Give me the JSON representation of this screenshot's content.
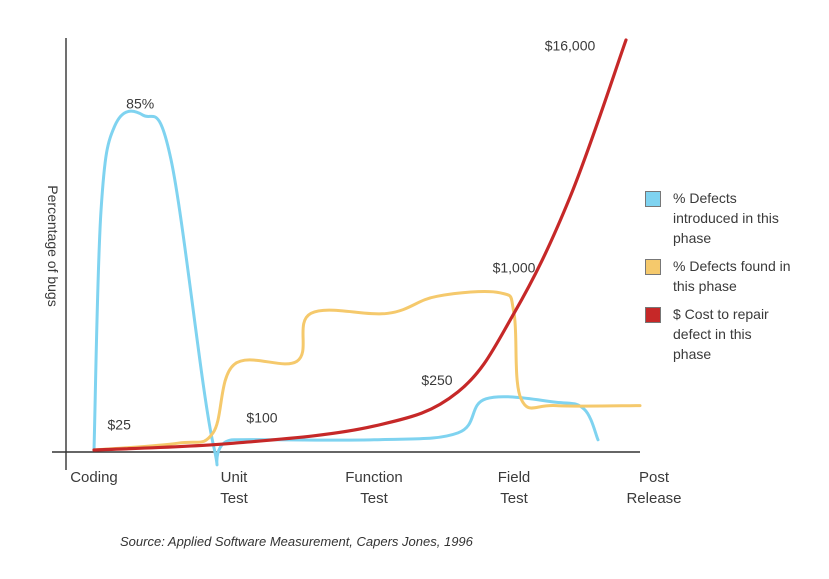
{
  "chart_data": {
    "type": "line",
    "ylabel": "Percentage of bugs",
    "categories": [
      "Coding",
      "Unit\nTest",
      "Function\nTest",
      "Field\nTest",
      "Post\nRelease"
    ],
    "series": [
      {
        "name": "% Defects introduced in this phase",
        "color": "#7fd3f0",
        "values": [
          [
            0.0,
            0
          ],
          [
            0.05,
            70
          ],
          [
            0.15,
            95
          ],
          [
            0.35,
            98
          ],
          [
            0.55,
            85
          ],
          [
            0.85,
            2
          ],
          [
            1.0,
            3
          ],
          [
            2.0,
            3
          ],
          [
            2.6,
            5
          ],
          [
            2.8,
            15
          ],
          [
            3.3,
            14
          ],
          [
            3.5,
            12
          ],
          [
            3.6,
            3
          ]
        ]
      },
      {
        "name": "% Defects found in this phase",
        "color": "#f5c96c",
        "values": [
          [
            0.0,
            0
          ],
          [
            0.6,
            2
          ],
          [
            0.85,
            5
          ],
          [
            1.0,
            25
          ],
          [
            1.45,
            26
          ],
          [
            1.55,
            40
          ],
          [
            2.1,
            40
          ],
          [
            2.45,
            45
          ],
          [
            2.9,
            46
          ],
          [
            3.0,
            40
          ],
          [
            3.05,
            15
          ],
          [
            3.3,
            13
          ],
          [
            3.9,
            13
          ]
        ]
      },
      {
        "name": "$ Cost to repair defect in this phase",
        "color": "#c62828",
        "values": [
          [
            0.0,
            0
          ],
          [
            1.0,
            2
          ],
          [
            2.0,
            7
          ],
          [
            2.6,
            17
          ],
          [
            3.0,
            40
          ],
          [
            3.4,
            74
          ],
          [
            3.8,
            120
          ]
        ]
      }
    ],
    "annotations": [
      {
        "text": "85%",
        "x": 0.33,
        "y": 100
      },
      {
        "text": "$25",
        "x": 0.18,
        "y": 6
      },
      {
        "text": "$100",
        "x": 1.2,
        "y": 8
      },
      {
        "text": "$250",
        "x": 2.45,
        "y": 19
      },
      {
        "text": "$1,000",
        "x": 3.0,
        "y": 52
      },
      {
        "text": "$16,000",
        "x": 3.4,
        "y": 117
      }
    ],
    "xlim": [
      -0.2,
      3.9
    ],
    "ylim": [
      0,
      120
    ]
  },
  "legend": [
    {
      "text": "% Defects introduced in this phase",
      "color": "#7fd3f0"
    },
    {
      "text": "% Defects found in this phase",
      "color": "#f5c96c"
    },
    {
      "text": "$ Cost to repair defect in this phase",
      "color": "#c62828"
    }
  ],
  "source": "Source: Applied Software Measurement, Capers Jones, 1996"
}
